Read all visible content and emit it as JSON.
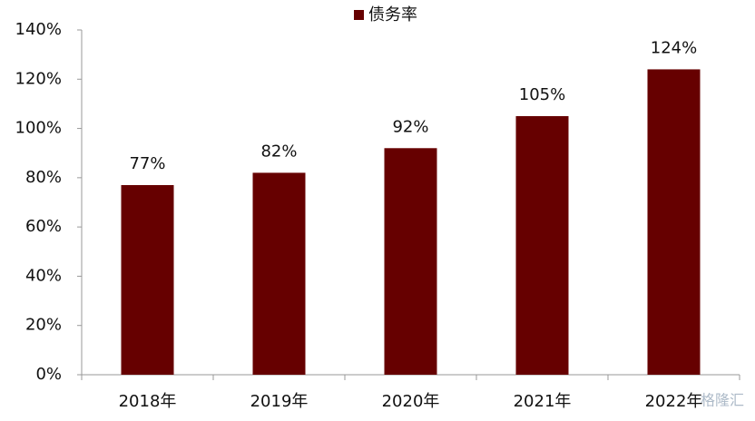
{
  "chart_data": {
    "type": "bar",
    "categories": [
      "2018年",
      "2019年",
      "2020年",
      "2021年",
      "2022年"
    ],
    "series": [
      {
        "name": "债务率",
        "color": "#660000",
        "values": [
          77,
          82,
          92,
          105,
          124
        ],
        "value_labels": [
          "77%",
          "82%",
          "92%",
          "105%",
          "124%"
        ]
      }
    ],
    "ylim": [
      0,
      140
    ],
    "yticks": [
      {
        "value": 0,
        "label": "0%"
      },
      {
        "value": 20,
        "label": "20%"
      },
      {
        "value": 40,
        "label": "40%"
      },
      {
        "value": 60,
        "label": "60%"
      },
      {
        "value": 80,
        "label": "80%"
      },
      {
        "value": 100,
        "label": "100%"
      },
      {
        "value": 120,
        "label": "120%"
      },
      {
        "value": 140,
        "label": "140%"
      }
    ],
    "grid": false,
    "legend": "top"
  },
  "watermark": "格隆汇"
}
